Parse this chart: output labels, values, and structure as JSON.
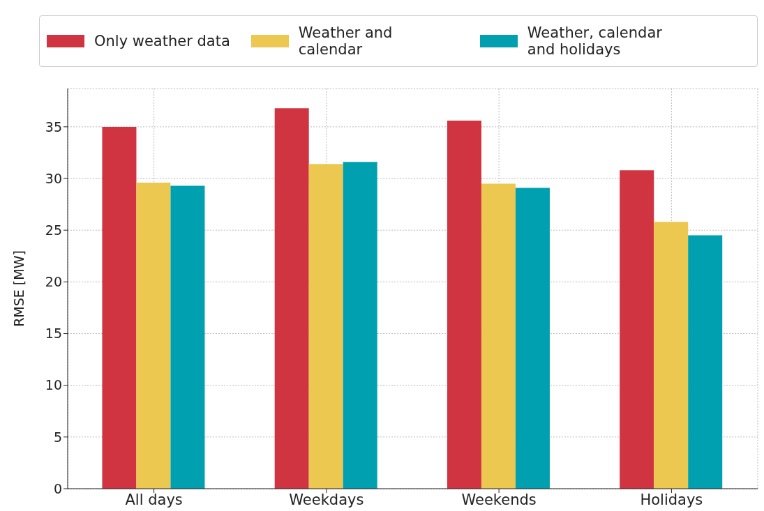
{
  "chart_data": {
    "type": "bar",
    "ylabel": "RMSE [MW]",
    "categories": [
      "All days",
      "Weekdays",
      "Weekends",
      "Holidays"
    ],
    "series": [
      {
        "name": "Only weather data",
        "color": "#cf3440",
        "values": [
          35.0,
          36.8,
          35.6,
          30.8
        ]
      },
      {
        "name": "Weather and calendar",
        "color": "#ecc851",
        "values": [
          29.6,
          31.4,
          29.5,
          25.8
        ]
      },
      {
        "name": "Weather, calendar and holidays",
        "color": "#00a0b0",
        "values": [
          29.3,
          31.6,
          29.1,
          24.5
        ]
      }
    ],
    "ylim": [
      0,
      38.7
    ],
    "yticks": [
      0,
      5,
      10,
      15,
      20,
      25,
      30,
      35
    ],
    "grid": true,
    "legend": "top"
  }
}
